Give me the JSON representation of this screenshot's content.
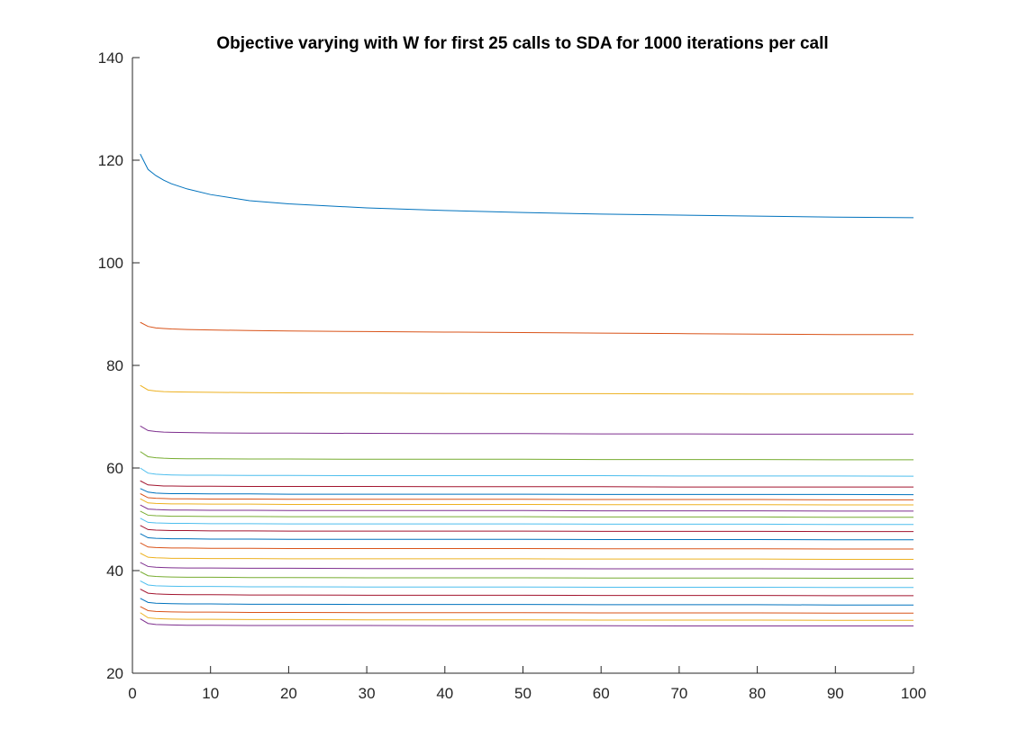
{
  "chart_data": {
    "type": "line",
    "title": "Objective varying with W for first 25 calls to SDA for 1000 iterations per call",
    "xlabel": "",
    "ylabel": "",
    "xlim": [
      0,
      100
    ],
    "ylim": [
      20,
      140
    ],
    "xticks": [
      0,
      10,
      20,
      30,
      40,
      50,
      60,
      70,
      80,
      90,
      100
    ],
    "yticks": [
      20,
      40,
      60,
      80,
      100,
      120,
      140
    ],
    "grid": false,
    "legend": "none",
    "x": [
      1,
      2,
      3,
      4,
      5,
      7,
      10,
      15,
      20,
      30,
      40,
      50,
      60,
      70,
      80,
      90,
      100
    ],
    "series": [
      {
        "color": "#0072BD",
        "values": [
          121.2,
          118.2,
          117.0,
          116.1,
          115.4,
          114.4,
          113.3,
          112.1,
          111.5,
          110.7,
          110.2,
          109.8,
          109.5,
          109.3,
          109.1,
          108.9,
          108.8
        ]
      },
      {
        "color": "#D95319",
        "values": [
          88.4,
          87.6,
          87.3,
          87.2,
          87.1,
          87.0,
          86.9,
          86.8,
          86.7,
          86.6,
          86.5,
          86.4,
          86.3,
          86.2,
          86.1,
          86.0,
          86.0
        ]
      },
      {
        "color": "#EDB120",
        "values": [
          76.1,
          75.2,
          75.0,
          74.9,
          74.85,
          74.8,
          74.75,
          74.7,
          74.65,
          74.6,
          74.55,
          74.5,
          74.5,
          74.45,
          74.4,
          74.4,
          74.4
        ]
      },
      {
        "color": "#7E2F8E",
        "values": [
          68.2,
          67.3,
          67.1,
          67.0,
          66.95,
          66.9,
          66.85,
          66.8,
          66.8,
          66.75,
          66.7,
          66.7,
          66.65,
          66.65,
          66.6,
          66.6,
          66.6
        ]
      },
      {
        "color": "#77AC30",
        "values": [
          63.2,
          62.2,
          62.0,
          61.9,
          61.85,
          61.8,
          61.8,
          61.75,
          61.75,
          61.7,
          61.7,
          61.7,
          61.65,
          61.65,
          61.65,
          61.6,
          61.6
        ]
      },
      {
        "color": "#4DBEEE",
        "values": [
          60.0,
          59.0,
          58.8,
          58.7,
          58.65,
          58.6,
          58.6,
          58.55,
          58.55,
          58.5,
          58.5,
          58.5,
          58.5,
          58.45,
          58.45,
          58.45,
          58.4
        ]
      },
      {
        "color": "#A2142F",
        "values": [
          57.5,
          56.7,
          56.6,
          56.5,
          56.5,
          56.45,
          56.45,
          56.4,
          56.4,
          56.4,
          56.35,
          56.35,
          56.35,
          56.3,
          56.3,
          56.3,
          56.3
        ]
      },
      {
        "color": "#0072BD",
        "values": [
          56.0,
          55.3,
          55.1,
          55.05,
          55.0,
          55.0,
          54.95,
          54.95,
          54.9,
          54.9,
          54.9,
          54.9,
          54.85,
          54.85,
          54.85,
          54.85,
          54.8
        ]
      },
      {
        "color": "#D95319",
        "values": [
          55.0,
          54.2,
          54.1,
          54.05,
          54.0,
          54.0,
          53.95,
          53.95,
          53.9,
          53.9,
          53.9,
          53.9,
          53.85,
          53.85,
          53.85,
          53.8,
          53.8
        ]
      },
      {
        "color": "#EDB120",
        "values": [
          54.0,
          53.2,
          53.1,
          53.05,
          53.0,
          53.0,
          52.95,
          52.95,
          52.9,
          52.9,
          52.9,
          52.9,
          52.85,
          52.85,
          52.85,
          52.8,
          52.8
        ]
      },
      {
        "color": "#7E2F8E",
        "values": [
          52.8,
          52.0,
          51.9,
          51.85,
          51.8,
          51.8,
          51.75,
          51.75,
          51.7,
          51.7,
          51.7,
          51.7,
          51.65,
          51.65,
          51.65,
          51.6,
          51.6
        ]
      },
      {
        "color": "#77AC30",
        "values": [
          51.6,
          50.8,
          50.7,
          50.65,
          50.6,
          50.6,
          50.55,
          50.55,
          50.5,
          50.5,
          50.5,
          50.5,
          50.45,
          50.45,
          50.45,
          50.4,
          50.4
        ]
      },
      {
        "color": "#4DBEEE",
        "values": [
          50.2,
          49.4,
          49.3,
          49.25,
          49.2,
          49.2,
          49.15,
          49.15,
          49.1,
          49.1,
          49.1,
          49.1,
          49.05,
          49.05,
          49.05,
          49.0,
          49.0
        ]
      },
      {
        "color": "#A2142F",
        "values": [
          48.8,
          48.0,
          47.9,
          47.85,
          47.8,
          47.8,
          47.75,
          47.75,
          47.7,
          47.7,
          47.7,
          47.7,
          47.65,
          47.65,
          47.65,
          47.6,
          47.6
        ]
      },
      {
        "color": "#0072BD",
        "values": [
          47.2,
          46.4,
          46.3,
          46.25,
          46.2,
          46.2,
          46.15,
          46.15,
          46.1,
          46.1,
          46.1,
          46.1,
          46.05,
          46.05,
          46.05,
          46.0,
          46.0
        ]
      },
      {
        "color": "#D95319",
        "values": [
          45.4,
          44.6,
          44.5,
          44.45,
          44.4,
          44.4,
          44.35,
          44.35,
          44.3,
          44.3,
          44.3,
          44.3,
          44.25,
          44.25,
          44.25,
          44.2,
          44.2
        ]
      },
      {
        "color": "#EDB120",
        "values": [
          43.4,
          42.6,
          42.5,
          42.45,
          42.4,
          42.4,
          42.35,
          42.35,
          42.3,
          42.3,
          42.3,
          42.3,
          42.25,
          42.25,
          42.25,
          42.2,
          42.2
        ]
      },
      {
        "color": "#7E2F8E",
        "values": [
          41.6,
          40.8,
          40.65,
          40.6,
          40.55,
          40.5,
          40.5,
          40.45,
          40.45,
          40.4,
          40.4,
          40.4,
          40.35,
          40.35,
          40.35,
          40.3,
          40.3
        ]
      },
      {
        "color": "#77AC30",
        "values": [
          39.8,
          39.0,
          38.85,
          38.8,
          38.75,
          38.7,
          38.7,
          38.65,
          38.65,
          38.6,
          38.6,
          38.6,
          38.55,
          38.55,
          38.55,
          38.5,
          38.5
        ]
      },
      {
        "color": "#4DBEEE",
        "values": [
          38.0,
          37.2,
          37.05,
          37.0,
          36.95,
          36.9,
          36.9,
          36.85,
          36.85,
          36.8,
          36.8,
          36.8,
          36.75,
          36.75,
          36.75,
          36.7,
          36.7
        ]
      },
      {
        "color": "#A2142F",
        "values": [
          36.4,
          35.6,
          35.45,
          35.4,
          35.35,
          35.3,
          35.3,
          35.25,
          35.25,
          35.2,
          35.2,
          35.2,
          35.15,
          35.15,
          35.15,
          35.1,
          35.1
        ]
      },
      {
        "color": "#0072BD",
        "values": [
          34.6,
          33.8,
          33.65,
          33.6,
          33.55,
          33.5,
          33.5,
          33.45,
          33.45,
          33.4,
          33.4,
          33.4,
          33.35,
          33.35,
          33.35,
          33.3,
          33.3
        ]
      },
      {
        "color": "#D95319",
        "values": [
          33.0,
          32.2,
          32.05,
          32.0,
          31.95,
          31.9,
          31.9,
          31.85,
          31.85,
          31.8,
          31.8,
          31.8,
          31.75,
          31.75,
          31.75,
          31.7,
          31.7
        ]
      },
      {
        "color": "#EDB120",
        "values": [
          31.8,
          30.8,
          30.65,
          30.6,
          30.55,
          30.5,
          30.5,
          30.45,
          30.45,
          30.4,
          30.4,
          30.4,
          30.35,
          30.35,
          30.35,
          30.3,
          30.3
        ]
      },
      {
        "color": "#7E2F8E",
        "values": [
          30.6,
          29.7,
          29.5,
          29.45,
          29.4,
          29.35,
          29.35,
          29.3,
          29.3,
          29.3,
          29.25,
          29.25,
          29.25,
          29.2,
          29.2,
          29.2,
          29.2
        ]
      }
    ]
  }
}
